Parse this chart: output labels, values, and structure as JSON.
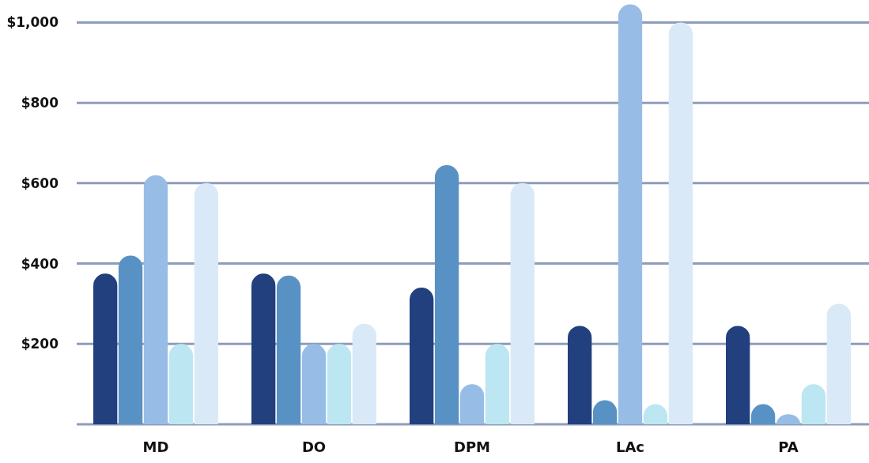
{
  "chart_data": {
    "type": "bar",
    "categories": [
      "MD",
      "DO",
      "DPM",
      "LAc",
      "PA"
    ],
    "series": [
      {
        "color": "#223f7e",
        "values": [
          375,
          375,
          340,
          245,
          245
        ]
      },
      {
        "color": "#5892c5",
        "values": [
          420,
          370,
          645,
          60,
          50
        ]
      },
      {
        "color": "#97bde6",
        "values": [
          620,
          200,
          100,
          1045,
          25
        ]
      },
      {
        "color": "#bce6f2",
        "values": [
          200,
          200,
          200,
          50,
          100
        ]
      },
      {
        "color": "#d9e9f7",
        "values": [
          600,
          250,
          600,
          1000,
          300
        ]
      }
    ],
    "ylim": [
      0,
      1050
    ],
    "yticks": [
      {
        "value": 0,
        "label": null
      },
      {
        "value": 200,
        "label": "$200"
      },
      {
        "value": 400,
        "label": "$400"
      },
      {
        "value": 600,
        "label": "$600"
      },
      {
        "value": 800,
        "label": "$800"
      },
      {
        "value": 1000,
        "label": "$1,000"
      }
    ],
    "grid": "y"
  }
}
